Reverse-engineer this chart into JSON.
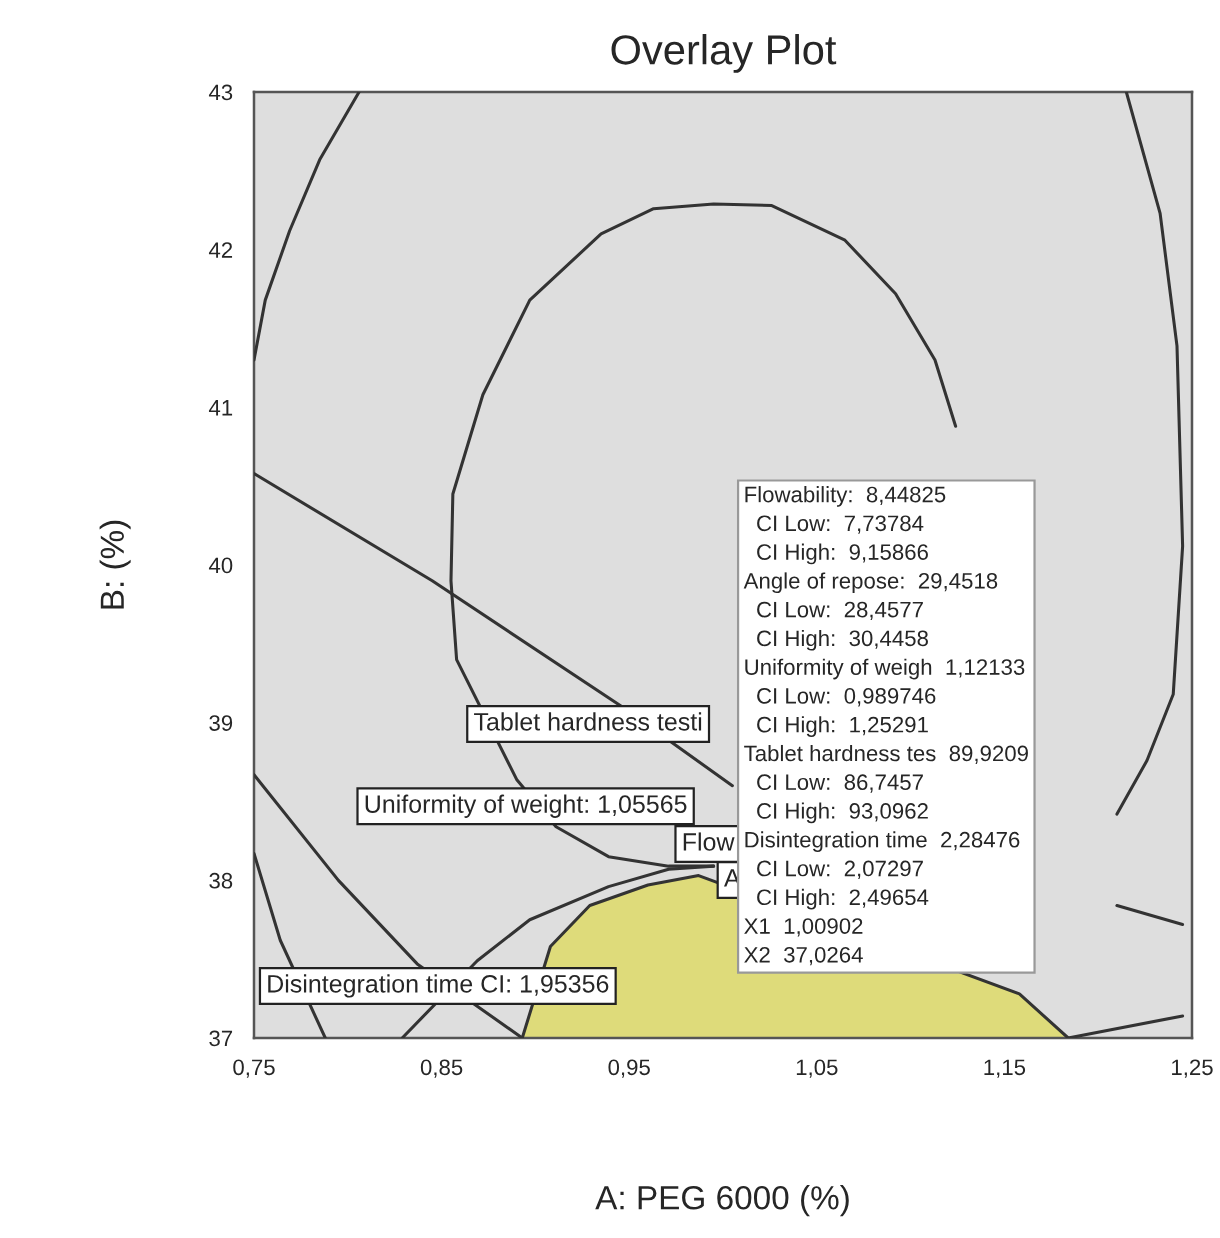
{
  "chart_data": {
    "type": "line",
    "title": "Overlay Plot",
    "xlabel": "A: PEG 6000 (%)",
    "ylabel": "B: (%)",
    "xlim": [
      0.75,
      1.25
    ],
    "ylim": [
      37,
      43
    ],
    "xticks": [
      {
        "value": 0.75,
        "label": "0,75"
      },
      {
        "value": 0.85,
        "label": "0,85"
      },
      {
        "value": 0.95,
        "label": "0,95"
      },
      {
        "value": 1.05,
        "label": "1,05"
      },
      {
        "value": 1.15,
        "label": "1,15"
      },
      {
        "value": 1.25,
        "label": "1,25"
      }
    ],
    "yticks": [
      37,
      38,
      39,
      40,
      41,
      42,
      43
    ],
    "grid": false,
    "marker": "none",
    "line_style": "solid",
    "series": [
      {
        "type": "area",
        "color": "#dedb7a",
        "x": [
          0.893,
          0.908,
          0.929,
          0.96,
          0.987,
          1.158,
          1.184
        ],
        "values": [
          37.0,
          37.58,
          37.84,
          37.97,
          38.03,
          37.28,
          37.0
        ]
      },
      {
        "type": "line",
        "color": "#333333",
        "x": [
          0.806,
          0.785,
          0.769,
          0.756,
          0.75
        ],
        "values": [
          43.0,
          42.57,
          42.12,
          41.68,
          41.3
        ]
      },
      {
        "type": "line",
        "color": "#333333",
        "x": [
          1.124,
          1.113,
          1.092,
          1.065,
          1.026,
          0.995,
          0.963,
          0.935,
          0.897,
          0.872,
          0.856,
          0.855,
          0.858,
          0.876,
          0.89,
          0.911,
          0.939,
          0.971,
          0.995
        ],
        "values": [
          40.88,
          41.3,
          41.72,
          42.06,
          42.28,
          42.29,
          42.26,
          42.1,
          41.68,
          41.08,
          40.45,
          39.9,
          39.4,
          null,
          38.64,
          38.34,
          38.15,
          38.09,
          38.09
        ]
      },
      {
        "type": "line",
        "color": "#333333",
        "x": [
          1.215,
          1.233,
          1.242,
          1.245,
          1.24,
          1.226,
          1.21
        ],
        "values": [
          43.0,
          42.23,
          41.39,
          40.12,
          39.18,
          38.76,
          38.42
        ]
      },
      {
        "type": "line",
        "color": "#333333",
        "x": [
          0.75,
          0.845,
          0.945,
          1.005
        ],
        "values": [
          40.58,
          39.9,
          39.11,
          38.6
        ]
      },
      {
        "type": "line",
        "color": "#333333",
        "x": [
          0.75,
          0.795,
          0.837,
          0.893
        ],
        "values": [
          38.67,
          38.0,
          37.47,
          37.0
        ]
      },
      {
        "type": "line",
        "color": "#333333",
        "x": [
          0.75,
          0.764,
          0.788
        ],
        "values": [
          38.17,
          37.62,
          37.0
        ]
      },
      {
        "type": "line",
        "color": "#333333",
        "x": [
          0.829,
          0.848,
          0.869,
          0.897,
          0.939,
          0.971,
          0.995
        ],
        "values": [
          37.0,
          null,
          37.49,
          37.75,
          37.96,
          38.07,
          38.09
        ]
      },
      {
        "color": "#333333",
        "x": [
          1.184,
          1.245
        ],
        "values": [
          37.0,
          37.14
        ]
      },
      {
        "color": "#333333",
        "x": [
          1.21,
          1.245
        ],
        "values": [
          37.84,
          37.72
        ]
      }
    ],
    "annotations": [
      "Tablet hardness testi",
      "Uniformity of weight: 1,05565",
      "Disintegration time CI: 1,95356",
      "Flow",
      "A",
      "Flowability:  8,44825\n  CI Low:  7,73784\n  CI High:  9,15866\nAngle of repose:  29,4518\n  CI Low:  28,4577\n  CI High:  30,4458\nUniformity of weigh  1,12133\n  CI Low:  0,989746\n  CI High:  1,25291\nTablet hardness tes  89,9209\n  CI Low:  86,7457\n  CI High:  93,0962\nDisintegration time  2,28476\n  CI Low:  2,07297\n  CI High:  2,49654\nX1  1,00902\nX2  37,0264"
    ]
  }
}
